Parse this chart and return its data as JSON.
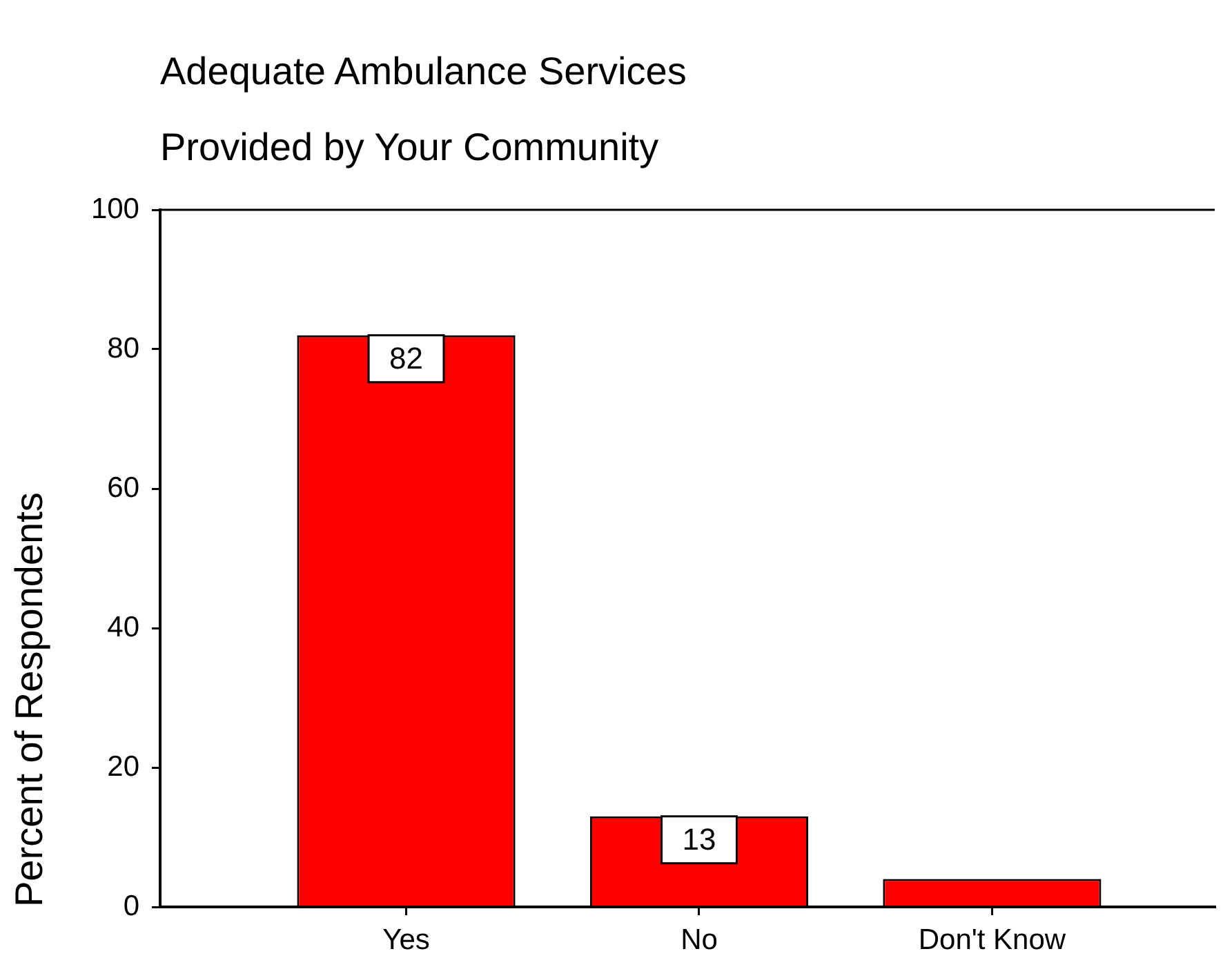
{
  "chart_data": {
    "type": "bar",
    "title": "Adequate Ambulance Services Provided by Your Community",
    "ylabel": "Percent of Respondents",
    "categories": [
      "Yes",
      "No",
      "Don't Know"
    ],
    "values": [
      82,
      13,
      4
    ],
    "value_labels": [
      "82",
      "13",
      null
    ],
    "color": "#ff0000",
    "ylim": [
      0,
      100
    ],
    "yticks": [
      0,
      20,
      40,
      60,
      80,
      100
    ]
  }
}
